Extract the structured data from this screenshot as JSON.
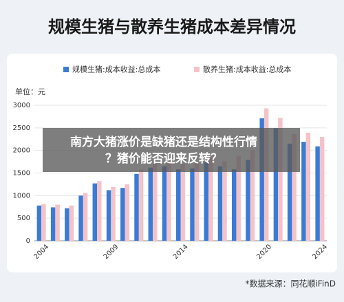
{
  "chart_data": {
    "type": "bar",
    "title": "规模生猪与散养生猪成本差异情况",
    "unit": "单位：元",
    "categories": [
      "2004",
      null,
      null,
      null,
      null,
      "2009",
      null,
      null,
      null,
      null,
      "2014",
      null,
      null,
      null,
      null,
      null,
      "2020",
      null,
      null,
      null,
      "2024"
    ],
    "series": [
      {
        "name": "规模生猪:成本收益:总成本",
        "color": "#3a7bd5",
        "values": [
          780,
          740,
          720,
          1000,
          1270,
          1120,
          1170,
          1480,
          1620,
          1650,
          1580,
          1600,
          1730,
          1650,
          1580,
          1790,
          2710,
          2490,
          2150,
          2190,
          2090
        ]
      },
      {
        "name": "散养生猪:成本收益:总成本",
        "color": "#f4c2c9",
        "values": [
          810,
          800,
          780,
          1060,
          1320,
          1190,
          1250,
          1580,
          1740,
          1760,
          1700,
          1720,
          1850,
          1760,
          1880,
          2000,
          2930,
          2720,
          2360,
          2390,
          2300
        ]
      }
    ],
    "ylim": [
      0,
      3000
    ],
    "yticks": [
      0,
      500,
      1000,
      1500,
      2000,
      2500,
      3000
    ],
    "grid": true
  },
  "source": "*数据来源：同花顺iFinD",
  "overlay": {
    "lines": [
      "南方大猪涨价是缺猪还是结构性行情",
      "？猪价能否迎来反转？"
    ]
  }
}
